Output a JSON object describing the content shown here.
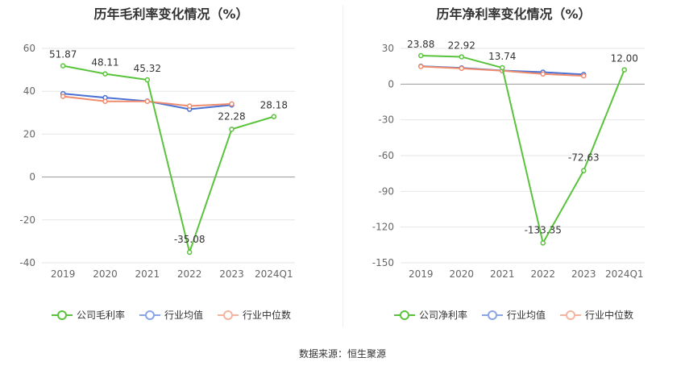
{
  "source": "数据来源：恒生聚源",
  "colors": {
    "company": "#5ac33c",
    "avg": "#4a72d4",
    "median": "#f08c6e",
    "grid": "#e6e6e6",
    "axis": "#666666"
  },
  "chart_data": [
    {
      "type": "line",
      "title": "历年毛利率变化情况（%）",
      "categories": [
        "2019",
        "2020",
        "2021",
        "2022",
        "2023",
        "2024Q1"
      ],
      "yticks": [
        60,
        40,
        20,
        0,
        -20,
        -40
      ],
      "ylim": [
        -40,
        60
      ],
      "series": [
        {
          "name": "公司毛利率",
          "color": "#5ac33c",
          "values": [
            51.87,
            48.11,
            45.32,
            -35.08,
            22.28,
            28.18
          ],
          "labels": [
            "51.87",
            "48.11",
            "45.32",
            "-35.08",
            "22.28",
            "28.18"
          ]
        },
        {
          "name": "行业均值",
          "color": "#4a72d4",
          "values": [
            38.9,
            37.0,
            35.4,
            31.6,
            33.6,
            null
          ]
        },
        {
          "name": "行业中位数",
          "color": "#f08c6e",
          "values": [
            37.6,
            35.3,
            35.3,
            33.1,
            34.1,
            null
          ]
        }
      ]
    },
    {
      "type": "line",
      "title": "历年净利率变化情况（%）",
      "categories": [
        "2019",
        "2020",
        "2021",
        "2022",
        "2023",
        "2024Q1"
      ],
      "yticks": [
        30,
        0,
        -30,
        -60,
        -90,
        -120,
        -150
      ],
      "ylim": [
        -150,
        30
      ],
      "series": [
        {
          "name": "公司净利率",
          "color": "#5ac33c",
          "values": [
            23.88,
            22.92,
            13.74,
            -133.35,
            -72.63,
            12.0
          ],
          "labels": [
            "23.88",
            "22.92",
            "13.74",
            "-133.35",
            "-72.63",
            "12.00"
          ]
        },
        {
          "name": "行业均值",
          "color": "#4a72d4",
          "values": [
            15.0,
            13.6,
            11.4,
            10.0,
            8.1,
            null
          ]
        },
        {
          "name": "行业中位数",
          "color": "#f08c6e",
          "values": [
            14.8,
            13.2,
            11.2,
            8.5,
            6.9,
            null
          ]
        }
      ]
    }
  ]
}
